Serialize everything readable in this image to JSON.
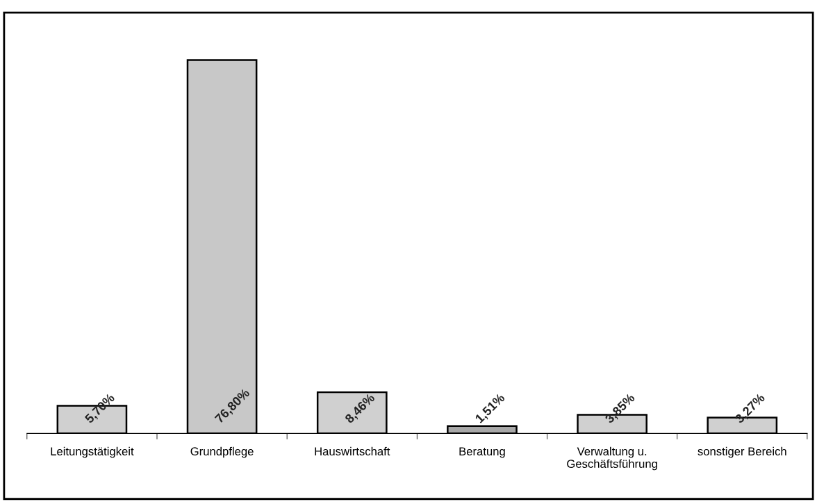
{
  "chart_data": {
    "type": "bar",
    "categories": [
      "Leitungstätigkeit",
      "Grundpflege",
      "Hauswirtschaft",
      "Beratung",
      "Verwaltung u.\nGeschäftsführung",
      "sonstiger Bereich"
    ],
    "values": [
      5.7,
      76.8,
      8.46,
      1.51,
      3.85,
      3.27
    ],
    "value_labels": [
      "5,70%",
      "76,80%",
      "8,46%",
      "1,51%",
      "3,85%",
      "3,27%"
    ],
    "colors": [
      "#d0d0d0",
      "#c8c8c8",
      "#d0d0d0",
      "#a8a8a8",
      "#d0d0d0",
      "#d0d0d0"
    ],
    "grid": false,
    "legend": false
  }
}
